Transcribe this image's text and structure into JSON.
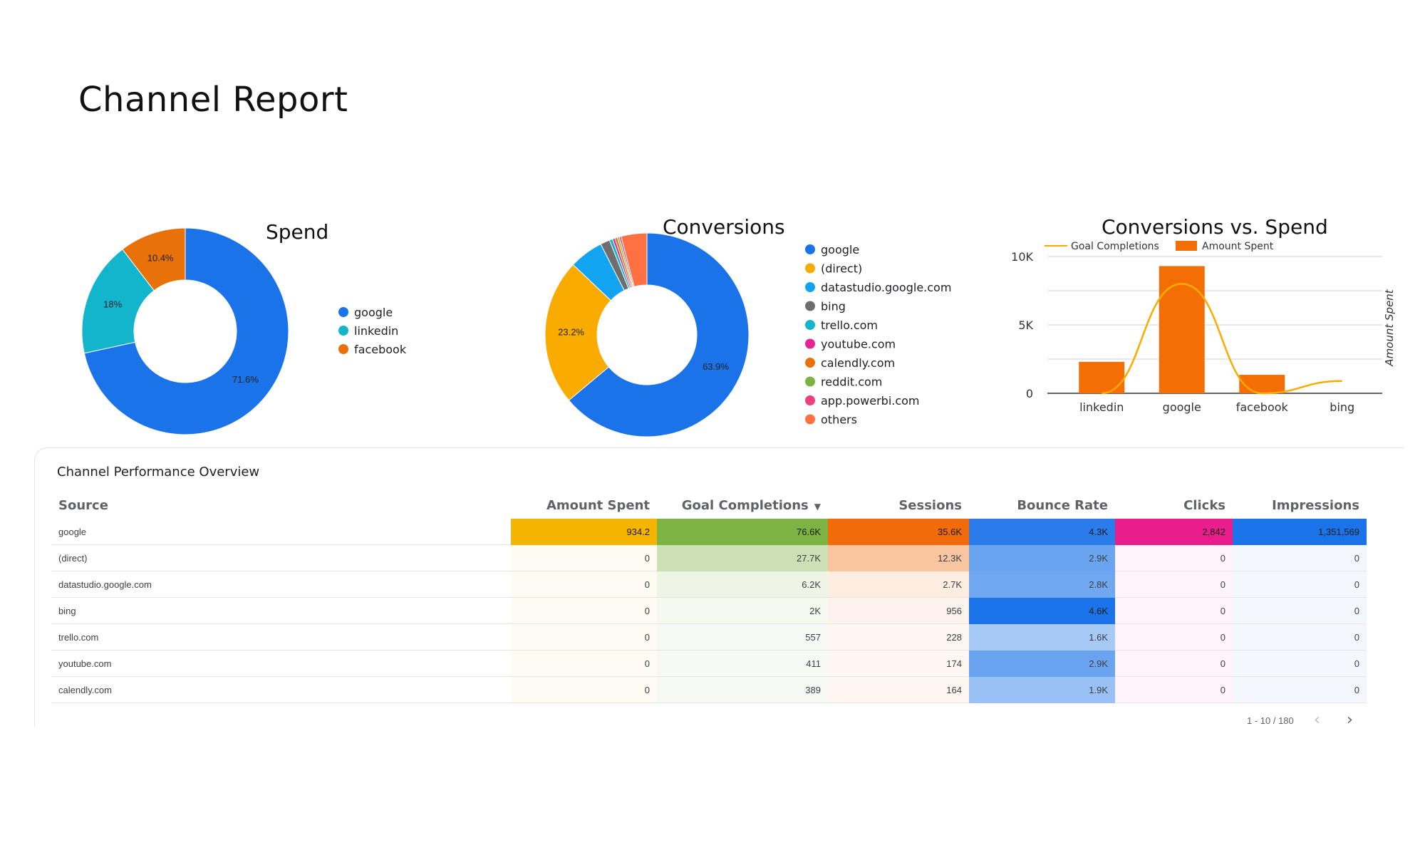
{
  "page": {
    "title": "Channel Report"
  },
  "spend": {
    "title": "Spend",
    "legend": [
      {
        "name": "google",
        "color": "#1a73e8"
      },
      {
        "name": "linkedin",
        "color": "#12b5cb"
      },
      {
        "name": "facebook",
        "color": "#e8710a"
      }
    ]
  },
  "conversions": {
    "title": "Conversions",
    "legend": [
      {
        "name": "google",
        "color": "#1a73e8"
      },
      {
        "name": "(direct)",
        "color": "#f9ab00"
      },
      {
        "name": "datastudio.google.com",
        "color": "#12a4f0"
      },
      {
        "name": "bing",
        "color": "#6e6e6e"
      },
      {
        "name": "trello.com",
        "color": "#12b5cb"
      },
      {
        "name": "youtube.com",
        "color": "#e52592"
      },
      {
        "name": "calendly.com",
        "color": "#e8710a"
      },
      {
        "name": "reddit.com",
        "color": "#7cb342"
      },
      {
        "name": "app.powerbi.com",
        "color": "#ec407a"
      },
      {
        "name": "others",
        "color": "#ff7043"
      }
    ]
  },
  "combo": {
    "title": "Conversions vs. Spend",
    "legend_line": "Goal Completions",
    "legend_bar": "Amount Spent",
    "right_axis_title": "Amount Spent",
    "line_color": "#f9ab00",
    "bar_color": "#f36f06"
  },
  "chart_data": [
    {
      "type": "pie",
      "title": "Spend",
      "donut": true,
      "categories": [
        "google",
        "linkedin",
        "facebook"
      ],
      "values": [
        71.6,
        18,
        10.4
      ],
      "labels": [
        "71.6%",
        "18%",
        "10.4%"
      ],
      "colors": [
        "#1a73e8",
        "#12b5cb",
        "#e8710a"
      ],
      "legend_position": "right"
    },
    {
      "type": "pie",
      "title": "Conversions",
      "donut": true,
      "categories": [
        "google",
        "(direct)",
        "datastudio.google.com",
        "bing",
        "trello.com",
        "youtube.com",
        "calendly.com",
        "reddit.com",
        "app.powerbi.com",
        "others"
      ],
      "values": [
        63.9,
        23.2,
        5.4,
        1.5,
        0.5,
        0.4,
        0.4,
        0.3,
        0.3,
        4.1
      ],
      "labels": [
        "63.9%",
        "23.2%",
        "",
        "",
        "",
        "",
        "",
        "",
        "",
        ""
      ],
      "colors": [
        "#1a73e8",
        "#f9ab00",
        "#12a4f0",
        "#6e6e6e",
        "#12b5cb",
        "#e52592",
        "#e8710a",
        "#7cb342",
        "#ec407a",
        "#ff7043"
      ],
      "legend_position": "right"
    },
    {
      "type": "bar",
      "title": "Conversions vs. Spend",
      "categories": [
        "linkedin",
        "google",
        "facebook",
        "bing"
      ],
      "series": [
        {
          "name": "Amount Spent",
          "type": "bar",
          "values": [
            2300,
            9300,
            1350,
            0
          ]
        },
        {
          "name": "Goal Completions",
          "type": "line",
          "values": [
            0,
            8000,
            0,
            900
          ]
        }
      ],
      "ylim": [
        0,
        10000
      ],
      "yticks": [
        "0",
        "5K",
        "10K"
      ],
      "y_right_label": "Amount Spent",
      "grid": true,
      "legend_position": "top"
    },
    {
      "type": "table",
      "title": "Channel Performance Overview",
      "columns": [
        "Source",
        "Amount Spent",
        "Goal Completions",
        "Sessions",
        "Bounce Rate",
        "Clicks",
        "Impressions"
      ],
      "rows": [
        [
          "google",
          "934.2",
          "76.6K",
          "35.6K",
          "4.3K",
          "2,842",
          "1,351,569"
        ],
        [
          "(direct)",
          "0",
          "27.7K",
          "12.3K",
          "2.9K",
          "0",
          "0"
        ],
        [
          "datastudio.google.com",
          "0",
          "6.2K",
          "2.7K",
          "2.8K",
          "0",
          "0"
        ],
        [
          "bing",
          "0",
          "2K",
          "956",
          "4.6K",
          "0",
          "0"
        ],
        [
          "trello.com",
          "0",
          "557",
          "228",
          "1.6K",
          "0",
          "0"
        ],
        [
          "youtube.com",
          "0",
          "411",
          "174",
          "2.9K",
          "0",
          "0"
        ],
        [
          "calendly.com",
          "0",
          "389",
          "164",
          "1.9K",
          "0",
          "0"
        ]
      ],
      "heat_colors": [
        "#f4b400",
        "#7cb342",
        "#f26b0a",
        "#1a73e8",
        "#e91e8c",
        "#1a73e8"
      ],
      "heat_levels": [
        [
          1,
          1,
          1,
          0.93,
          1,
          1
        ],
        [
          0,
          0.36,
          0.35,
          0.63,
          0,
          0
        ],
        [
          0,
          0.08,
          0.08,
          0.61,
          0,
          0
        ],
        [
          0,
          0.03,
          0.03,
          1,
          0,
          0
        ],
        [
          0,
          0.01,
          0.01,
          0.35,
          0,
          0
        ],
        [
          0,
          0.01,
          0.01,
          0.63,
          0,
          0
        ],
        [
          0,
          0.01,
          0.01,
          0.41,
          0,
          0
        ]
      ],
      "sorted_column": "Goal Completions",
      "pagination": "1 - 10 / 180"
    }
  ]
}
